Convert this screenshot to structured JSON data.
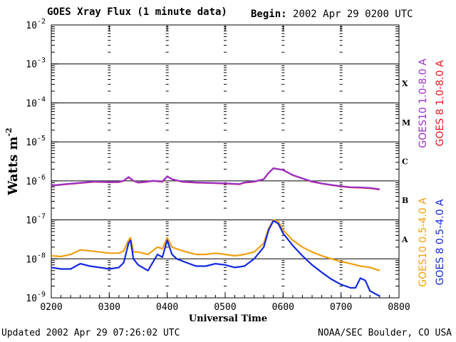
{
  "header": {
    "title": "GOES Xray Flux (1 minute data)",
    "begin_label": "Begin:",
    "begin_value": "2002 Apr 29 0200 UTC"
  },
  "footer": {
    "updated": "Updated 2002 Apr 29 07:26:02 UTC",
    "credit": "NOAA/SEC Boulder, CO USA"
  },
  "chart_data": {
    "type": "line",
    "xlabel": "Universal Time",
    "ylabel": "Watts m",
    "ylabel_sup": "-2",
    "y_scale": "log",
    "ylim": [
      1e-09,
      0.01
    ],
    "xlim_hours": [
      2,
      8
    ],
    "x_ticks": [
      "0200",
      "0300",
      "0400",
      "0500",
      "0600",
      "0700",
      "0800"
    ],
    "y_ticks": [
      {
        "exp": -2,
        "label": "10",
        "sup": "-2"
      },
      {
        "exp": -3,
        "label": "10",
        "sup": "-3"
      },
      {
        "exp": -4,
        "label": "10",
        "sup": "-4"
      },
      {
        "exp": -5,
        "label": "10",
        "sup": "-5"
      },
      {
        "exp": -6,
        "label": "10",
        "sup": "-6"
      },
      {
        "exp": -7,
        "label": "10",
        "sup": "-7"
      },
      {
        "exp": -8,
        "label": "10",
        "sup": "-8"
      },
      {
        "exp": -9,
        "label": "10",
        "sup": "-9"
      }
    ],
    "flare_classes": [
      {
        "label": "X",
        "exp": -3.5
      },
      {
        "label": "M",
        "exp": -4.5
      },
      {
        "label": "C",
        "exp": -5.5
      },
      {
        "label": "B",
        "exp": -6.5
      },
      {
        "label": "A",
        "exp": -7.5
      }
    ],
    "grid_exps": [
      -3,
      -4,
      -5,
      -6,
      -7,
      -8
    ],
    "series": [
      {
        "name": "GOES 8 1.0-8.0 A",
        "color": "#e8141c",
        "x": [
          "0200",
          "0215",
          "0230",
          "0245",
          "0300",
          "0310",
          "0315",
          "0320",
          "0325",
          "0330",
          "0340",
          "0345",
          "0355",
          "0400",
          "0405",
          "0415",
          "0430",
          "0445",
          "0500",
          "0515",
          "0520",
          "0530",
          "0540",
          "0545",
          "0550",
          "0555",
          "0600",
          "0610",
          "0620",
          "0630",
          "0640",
          "0650",
          "0700",
          "0710",
          "0720",
          "0730",
          "0740"
        ],
        "y": [
          7.5e-07,
          8.2e-07,
          8.8e-07,
          9.5e-07,
          9.2e-07,
          9.3e-07,
          1e-06,
          1.25e-06,
          1e-06,
          9e-07,
          9.5e-07,
          1e-06,
          9.5e-07,
          1.3e-06,
          1.1e-06,
          9.5e-07,
          9e-07,
          8.8e-07,
          8.5e-07,
          8.2e-07,
          9e-07,
          9.5e-07,
          1.1e-06,
          1.6e-06,
          2.1e-06,
          2e-06,
          1.9e-06,
          1.4e-06,
          1.15e-06,
          9.5e-07,
          8.5e-07,
          7.8e-07,
          7.2e-07,
          6.8e-07,
          6.7e-07,
          6.5e-07,
          6e-07
        ]
      },
      {
        "name": "GOES10 1.0-8.0 A",
        "color": "#9b30c8",
        "x": [
          "0200",
          "0215",
          "0230",
          "0245",
          "0300",
          "0310",
          "0315",
          "0320",
          "0325",
          "0330",
          "0340",
          "0345",
          "0355",
          "0400",
          "0405",
          "0415",
          "0430",
          "0445",
          "0500",
          "0515",
          "0520",
          "0530",
          "0540",
          "0545",
          "0550",
          "0555",
          "0600",
          "0610",
          "0620",
          "0630",
          "0640",
          "0650",
          "0700",
          "0710",
          "0720",
          "0730",
          "0740"
        ],
        "y": [
          7.6e-07,
          8.3e-07,
          8.9e-07,
          9.6e-07,
          9.3e-07,
          9.4e-07,
          1.01e-06,
          1.26e-06,
          1.01e-06,
          9.1e-07,
          9.6e-07,
          1.01e-06,
          9.6e-07,
          1.31e-06,
          1.11e-06,
          9.6e-07,
          9.1e-07,
          8.9e-07,
          8.6e-07,
          8.3e-07,
          9.1e-07,
          9.6e-07,
          1.11e-06,
          1.61e-06,
          2.11e-06,
          2.01e-06,
          1.91e-06,
          1.41e-06,
          1.16e-06,
          9.6e-07,
          8.6e-07,
          7.9e-07,
          7.3e-07,
          6.9e-07,
          6.8e-07,
          6.6e-07,
          6.1e-07
        ]
      },
      {
        "name": "GOES10 0.5-4.0 A",
        "color": "#f0a010",
        "x": [
          "0200",
          "0210",
          "0220",
          "0230",
          "0240",
          "0250",
          "0300",
          "0310",
          "0315",
          "0320",
          "0322",
          "0325",
          "0330",
          "0340",
          "0350",
          "0355",
          "0400",
          "0405",
          "0410",
          "0420",
          "0430",
          "0440",
          "0450",
          "0500",
          "0510",
          "0520",
          "0530",
          "0540",
          "0545",
          "0550",
          "0555",
          "0600",
          "0610",
          "0620",
          "0630",
          "0640",
          "0650",
          "0700",
          "0710",
          "0720",
          "0730",
          "0740"
        ],
        "y": [
          1.2e-08,
          1.15e-08,
          1.3e-08,
          1.7e-08,
          1.6e-08,
          1.5e-08,
          1.4e-08,
          1.4e-08,
          1.6e-08,
          3e-08,
          3.5e-08,
          1.5e-08,
          1.5e-08,
          1.3e-08,
          2e-08,
          1.8e-08,
          3.5e-08,
          2e-08,
          1.8e-08,
          1.5e-08,
          1.3e-08,
          1.3e-08,
          1.4e-08,
          1.3e-08,
          1.2e-08,
          1.3e-08,
          1.5e-08,
          2.5e-08,
          6e-08,
          1e-07,
          9e-08,
          5.5e-08,
          3e-08,
          2e-08,
          1.5e-08,
          1.2e-08,
          1e-08,
          8.5e-09,
          7.5e-09,
          6.5e-09,
          6e-09,
          5e-09
        ]
      },
      {
        "name": "GOES 8 0.5-4.0 A",
        "color": "#1428e0",
        "x": [
          "0200",
          "0210",
          "0220",
          "0230",
          "0240",
          "0250",
          "0300",
          "0310",
          "0315",
          "0320",
          "0322",
          "0325",
          "0330",
          "0340",
          "0350",
          "0355",
          "0400",
          "0405",
          "0410",
          "0420",
          "0430",
          "0440",
          "0450",
          "0500",
          "0510",
          "0520",
          "0530",
          "0540",
          "0545",
          "0550",
          "0555",
          "0600",
          "0610",
          "0620",
          "0630",
          "0640",
          "0650",
          "0700",
          "0710",
          "0715",
          "0720",
          "0725",
          "0730",
          "0740"
        ],
        "y": [
          6e-09,
          5.5e-09,
          5.5e-09,
          7.5e-09,
          6.5e-09,
          6e-09,
          5.5e-09,
          6e-09,
          8e-09,
          2.5e-08,
          3e-08,
          1e-08,
          7e-09,
          5e-09,
          1.3e-08,
          1.1e-08,
          3e-08,
          1.3e-08,
          1e-08,
          8e-09,
          6.5e-09,
          6.5e-09,
          7.5e-09,
          7e-09,
          6e-09,
          6.5e-09,
          1e-08,
          2e-08,
          5.5e-08,
          9.5e-08,
          8e-08,
          4.5e-08,
          2.2e-08,
          1.2e-08,
          7e-09,
          4.5e-09,
          3e-09,
          2.2e-09,
          1.8e-09,
          1.8e-09,
          3.2e-09,
          2.8e-09,
          1.5e-09,
          1.1e-09
        ]
      }
    ]
  }
}
